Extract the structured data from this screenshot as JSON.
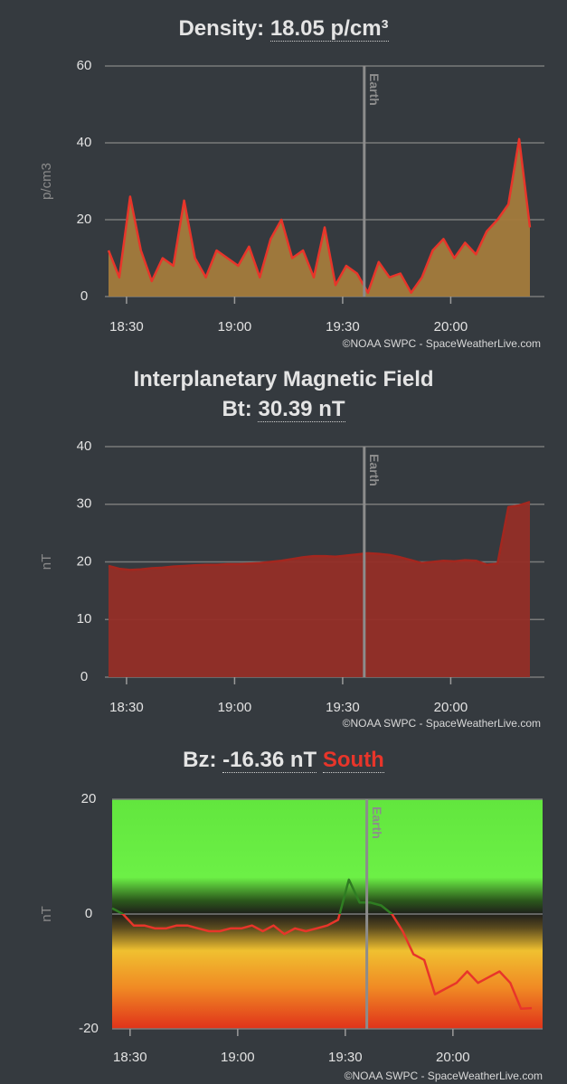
{
  "chart_data": [
    {
      "type": "area",
      "title": "Density:",
      "title_value": "18.05 p/cm³",
      "ylabel": "p/cm3",
      "credit": "©NOAA SWPC - SpaceWeatherLive.com",
      "annotations": [
        {
          "text": "Earth",
          "x": "19:36"
        }
      ],
      "x": [
        "18:25",
        "18:28",
        "18:31",
        "18:34",
        "18:37",
        "18:40",
        "18:43",
        "18:46",
        "18:49",
        "18:52",
        "18:55",
        "18:58",
        "19:01",
        "19:04",
        "19:07",
        "19:10",
        "19:13",
        "19:16",
        "19:19",
        "19:22",
        "19:25",
        "19:28",
        "19:31",
        "19:34",
        "19:37",
        "19:40",
        "19:43",
        "19:46",
        "19:49",
        "19:52",
        "19:55",
        "19:58",
        "20:01",
        "20:04",
        "20:07",
        "20:10",
        "20:13",
        "20:16",
        "20:19",
        "20:22"
      ],
      "values": [
        12,
        5,
        26,
        12,
        4,
        10,
        8,
        25,
        10,
        5,
        12,
        10,
        8,
        13,
        5,
        15,
        20,
        10,
        12,
        5,
        18,
        3,
        8,
        6,
        1,
        9,
        5,
        6,
        1,
        5,
        12,
        15,
        10,
        14,
        11,
        17,
        20,
        24,
        41,
        18
      ],
      "color": "#e8352a",
      "fill_color": "#a47b3c",
      "xlim": [
        "18:25",
        "20:25"
      ],
      "xticks": [
        "18:30",
        "19:00",
        "19:30",
        "20:00"
      ],
      "ylim": [
        0,
        60
      ],
      "yticks": [
        0,
        20,
        40,
        60
      ],
      "grid": true
    },
    {
      "type": "area",
      "title": "Interplanetary Magnetic Field",
      "title_prefix": "Bt:",
      "title_value": "30.39 nT",
      "ylabel": "nT",
      "credit": "©NOAA SWPC - SpaceWeatherLive.com",
      "annotations": [
        {
          "text": "Earth",
          "x": "19:36"
        }
      ],
      "x": [
        "18:25",
        "18:28",
        "18:31",
        "18:34",
        "18:37",
        "18:40",
        "18:43",
        "18:46",
        "18:49",
        "18:52",
        "18:55",
        "18:58",
        "19:01",
        "19:04",
        "19:07",
        "19:10",
        "19:13",
        "19:16",
        "19:19",
        "19:22",
        "19:25",
        "19:28",
        "19:31",
        "19:34",
        "19:37",
        "19:40",
        "19:43",
        "19:46",
        "19:49",
        "19:52",
        "19:55",
        "19:58",
        "20:01",
        "20:04",
        "20:07",
        "20:10",
        "20:13",
        "20:16",
        "20:19",
        "20:22"
      ],
      "values": [
        19.3,
        18.8,
        18.6,
        18.7,
        18.9,
        19.0,
        19.2,
        19.3,
        19.4,
        19.5,
        19.5,
        19.6,
        19.6,
        19.7,
        19.8,
        20.0,
        20.2,
        20.5,
        20.8,
        21.0,
        21.0,
        20.9,
        21.1,
        21.3,
        21.5,
        21.4,
        21.2,
        20.8,
        20.3,
        19.8,
        20.0,
        20.2,
        20.1,
        20.3,
        20.2,
        19.5,
        19.7,
        29.5,
        29.8,
        30.4
      ],
      "color": "#a3271f",
      "fill_color": "#952e27",
      "xlim": [
        "18:25",
        "20:25"
      ],
      "xticks": [
        "18:30",
        "19:00",
        "19:30",
        "20:00"
      ],
      "ylim": [
        0,
        40
      ],
      "yticks": [
        0,
        10,
        20,
        30,
        40
      ],
      "grid": true
    },
    {
      "type": "line",
      "title_prefix": "Bz:",
      "title_value": "-16.36 nT",
      "title_suffix": "South",
      "ylabel": "nT",
      "credit": "©NOAA SWPC - SpaceWeatherLive.com",
      "annotations": [
        {
          "text": "Earth",
          "x": "19:36"
        }
      ],
      "x": [
        "18:25",
        "18:28",
        "18:31",
        "18:34",
        "18:37",
        "18:40",
        "18:43",
        "18:46",
        "18:49",
        "18:52",
        "18:55",
        "18:58",
        "19:01",
        "19:04",
        "19:07",
        "19:10",
        "19:13",
        "19:16",
        "19:19",
        "19:22",
        "19:25",
        "19:28",
        "19:31",
        "19:34",
        "19:37",
        "19:40",
        "19:43",
        "19:46",
        "19:49",
        "19:52",
        "19:55",
        "19:58",
        "20:01",
        "20:04",
        "20:07",
        "20:10",
        "20:13",
        "20:16",
        "20:19",
        "20:22"
      ],
      "values": [
        1,
        0,
        -2,
        -2,
        -2.5,
        -2.5,
        -2,
        -2,
        -2.5,
        -3,
        -3,
        -2.5,
        -2.5,
        -2,
        -3,
        -2,
        -3.5,
        -2.5,
        -3,
        -2.5,
        -2,
        -1,
        6,
        2,
        2,
        1.5,
        0,
        -3,
        -7,
        -8,
        -14,
        -13,
        -12,
        -10,
        -12,
        -11,
        -10,
        -12,
        -16.5,
        -16.4
      ],
      "color_positive": "#2f7d22",
      "color_negative": "#e8352a",
      "xlim": [
        "18:25",
        "20:25"
      ],
      "xticks": [
        "18:30",
        "19:00",
        "19:30",
        "20:00"
      ],
      "ylim": [
        -20,
        20
      ],
      "yticks": [
        -20,
        0,
        20
      ],
      "grid": true
    }
  ]
}
